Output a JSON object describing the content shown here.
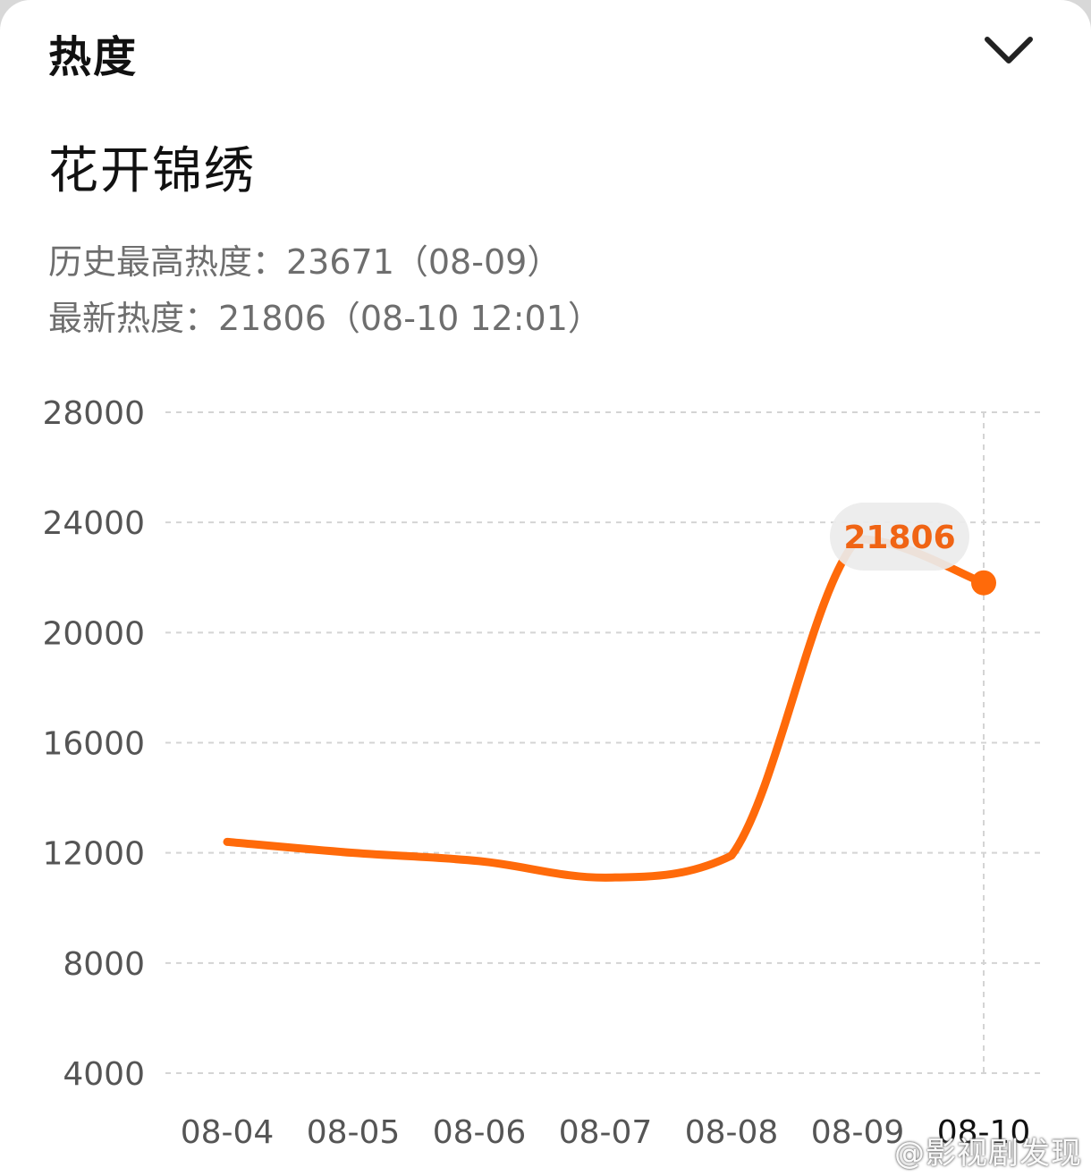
{
  "header": {
    "title": "热度",
    "collapse_icon": "chevron-down-icon"
  },
  "show": {
    "title": "花开锦绣"
  },
  "stats": {
    "peak_line": "历史最高热度：23671（08-09）",
    "latest_line": "最新热度：21806（08-10 12:01）"
  },
  "chart_data": {
    "type": "line",
    "categories": [
      "08-04",
      "08-05",
      "08-06",
      "08-07",
      "08-08",
      "08-09",
      "08-10"
    ],
    "values": [
      12400,
      12000,
      11700,
      11100,
      11900,
      23400,
      21806
    ],
    "ylim": [
      4000,
      28000
    ],
    "yticks": [
      "28000",
      "24000",
      "20000",
      "16000",
      "12000",
      "8000",
      "4000"
    ],
    "grid": true,
    "highlight": {
      "category": "08-10",
      "label": "21806"
    },
    "colors": {
      "line": "#ff6a0a",
      "label_text": "#f06414",
      "label_bg": "#ebebeb",
      "grid": "#d4d4d4",
      "tick_text": "#555555",
      "tick_text_active": "#111111"
    }
  },
  "watermark": "@影视剧发现"
}
